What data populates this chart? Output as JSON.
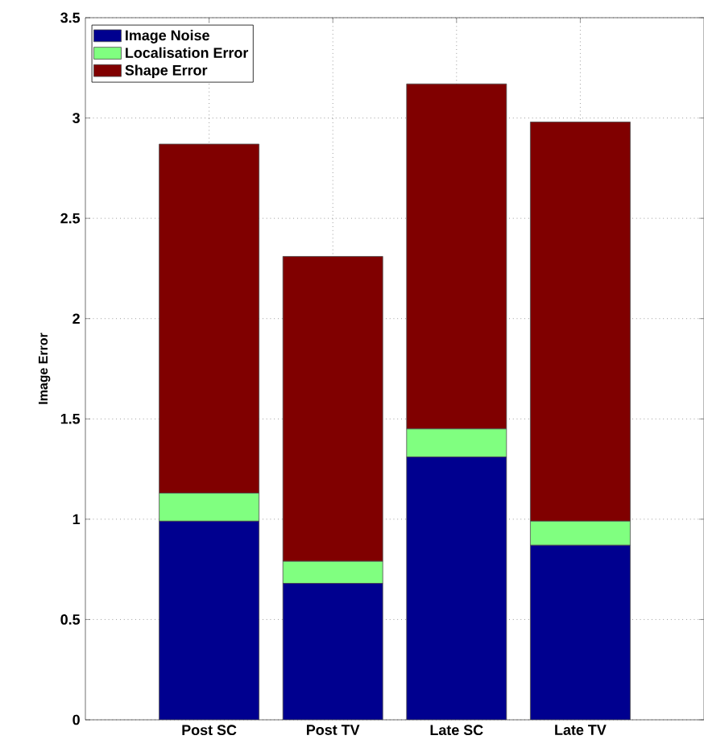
{
  "chart_data": {
    "type": "bar",
    "stacked": true,
    "ylabel": "Image Error",
    "categories": [
      "Post SC",
      "Post TV",
      "Late SC",
      "Late TV"
    ],
    "series": [
      {
        "name": "Image Noise",
        "color": "#00008f",
        "values": [
          0.99,
          0.68,
          1.31,
          0.87
        ]
      },
      {
        "name": "Localisation Error",
        "color": "#80ff80",
        "values": [
          0.14,
          0.11,
          0.14,
          0.12
        ]
      },
      {
        "name": "Shape Error",
        "color": "#800000",
        "values": [
          1.74,
          1.52,
          1.72,
          1.99
        ]
      }
    ],
    "ylim": [
      0,
      3.5
    ],
    "yticks": [
      0,
      0.5,
      1,
      1.5,
      2,
      2.5,
      3,
      3.5
    ],
    "grid": true,
    "legend": "top left"
  }
}
